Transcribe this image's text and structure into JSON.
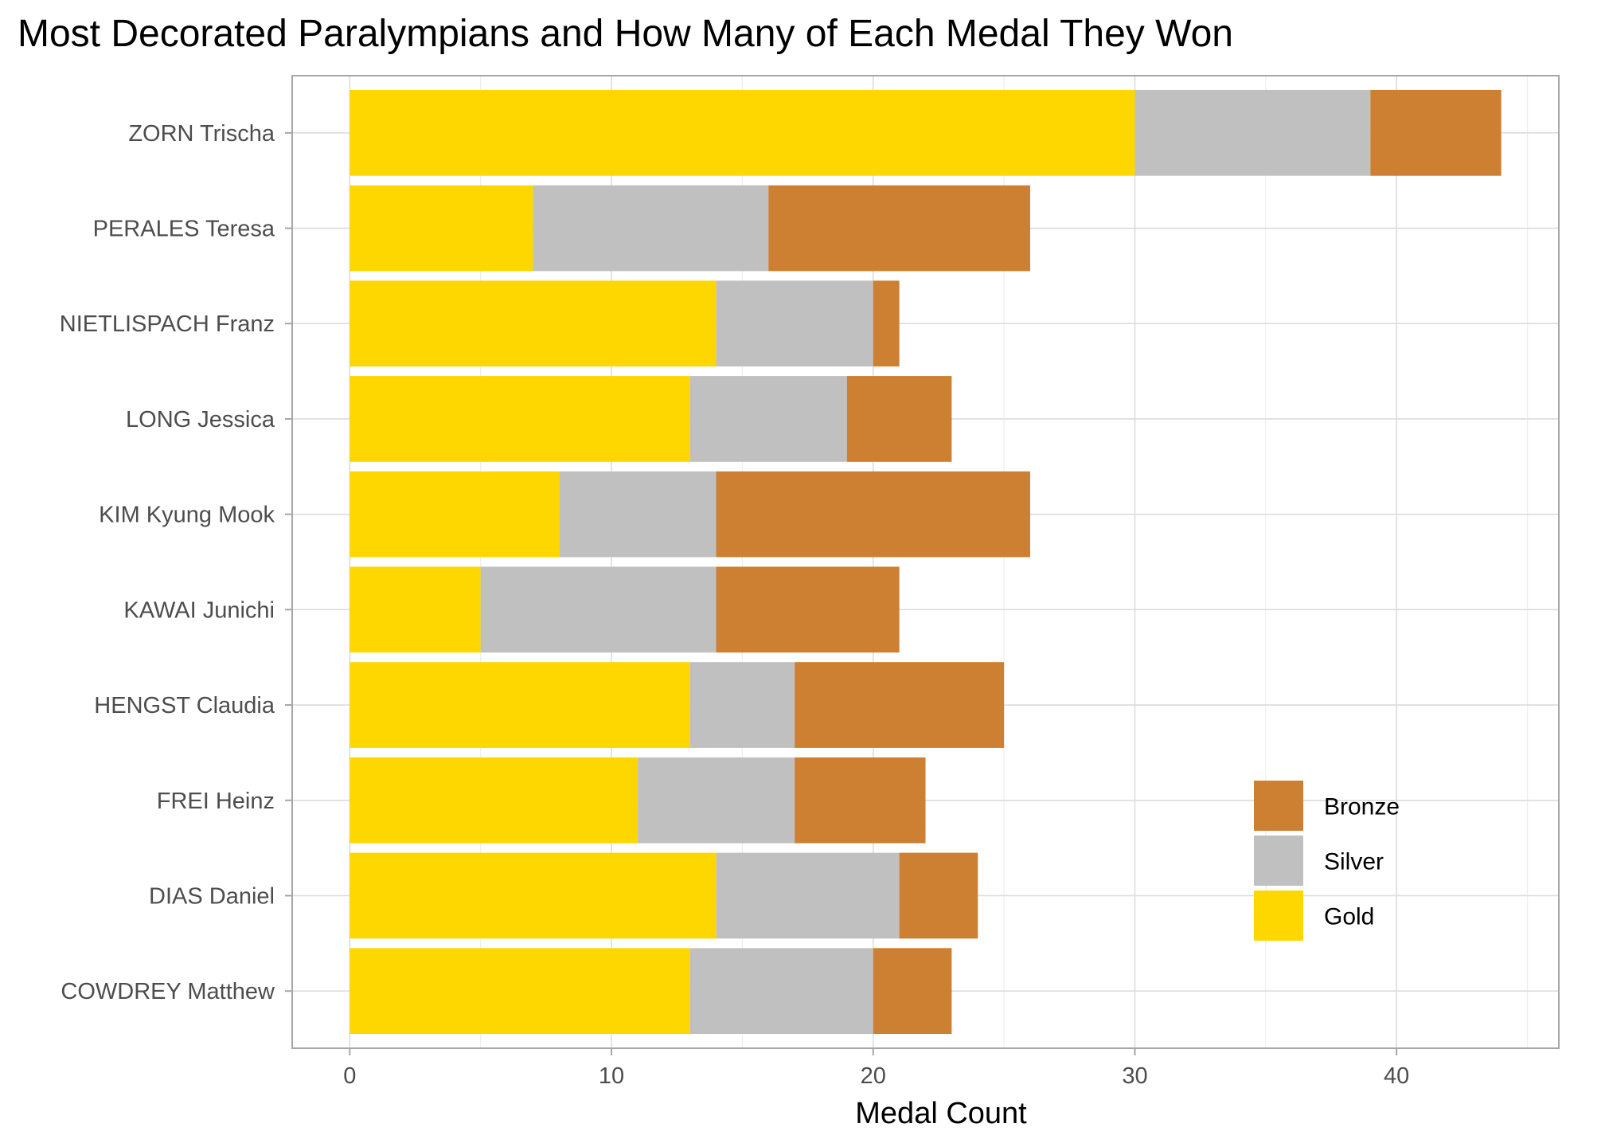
{
  "chart_data": {
    "type": "bar",
    "orientation": "horizontal",
    "stacked": true,
    "title": "Most Decorated Paralympians and How Many of Each Medal They Won",
    "xlabel": "Medal Count",
    "ylabel": "",
    "xlim": [
      -2.2,
      46.2
    ],
    "x_ticks": [
      0,
      10,
      20,
      30,
      40
    ],
    "grid": true,
    "legend_position": "bottom-right",
    "categories": [
      "ZORN Trischa",
      "PERALES Teresa",
      "NIETLISPACH Franz",
      "LONG Jessica",
      "KIM Kyung Mook",
      "KAWAI Junichi",
      "HENGST Claudia",
      "FREI Heinz",
      "DIAS Daniel",
      "COWDREY Matthew"
    ],
    "series": [
      {
        "name": "Gold",
        "color": "#FFD700",
        "values": [
          30,
          7,
          14,
          13,
          8,
          5,
          13,
          11,
          14,
          13
        ]
      },
      {
        "name": "Silver",
        "color": "#C0C0C0",
        "values": [
          9,
          9,
          6,
          6,
          6,
          9,
          4,
          6,
          7,
          7
        ]
      },
      {
        "name": "Bronze",
        "color": "#CD7F32",
        "values": [
          5,
          10,
          1,
          4,
          12,
          7,
          8,
          5,
          3,
          3
        ]
      }
    ],
    "legend_order": [
      "Bronze",
      "Silver",
      "Gold"
    ]
  }
}
